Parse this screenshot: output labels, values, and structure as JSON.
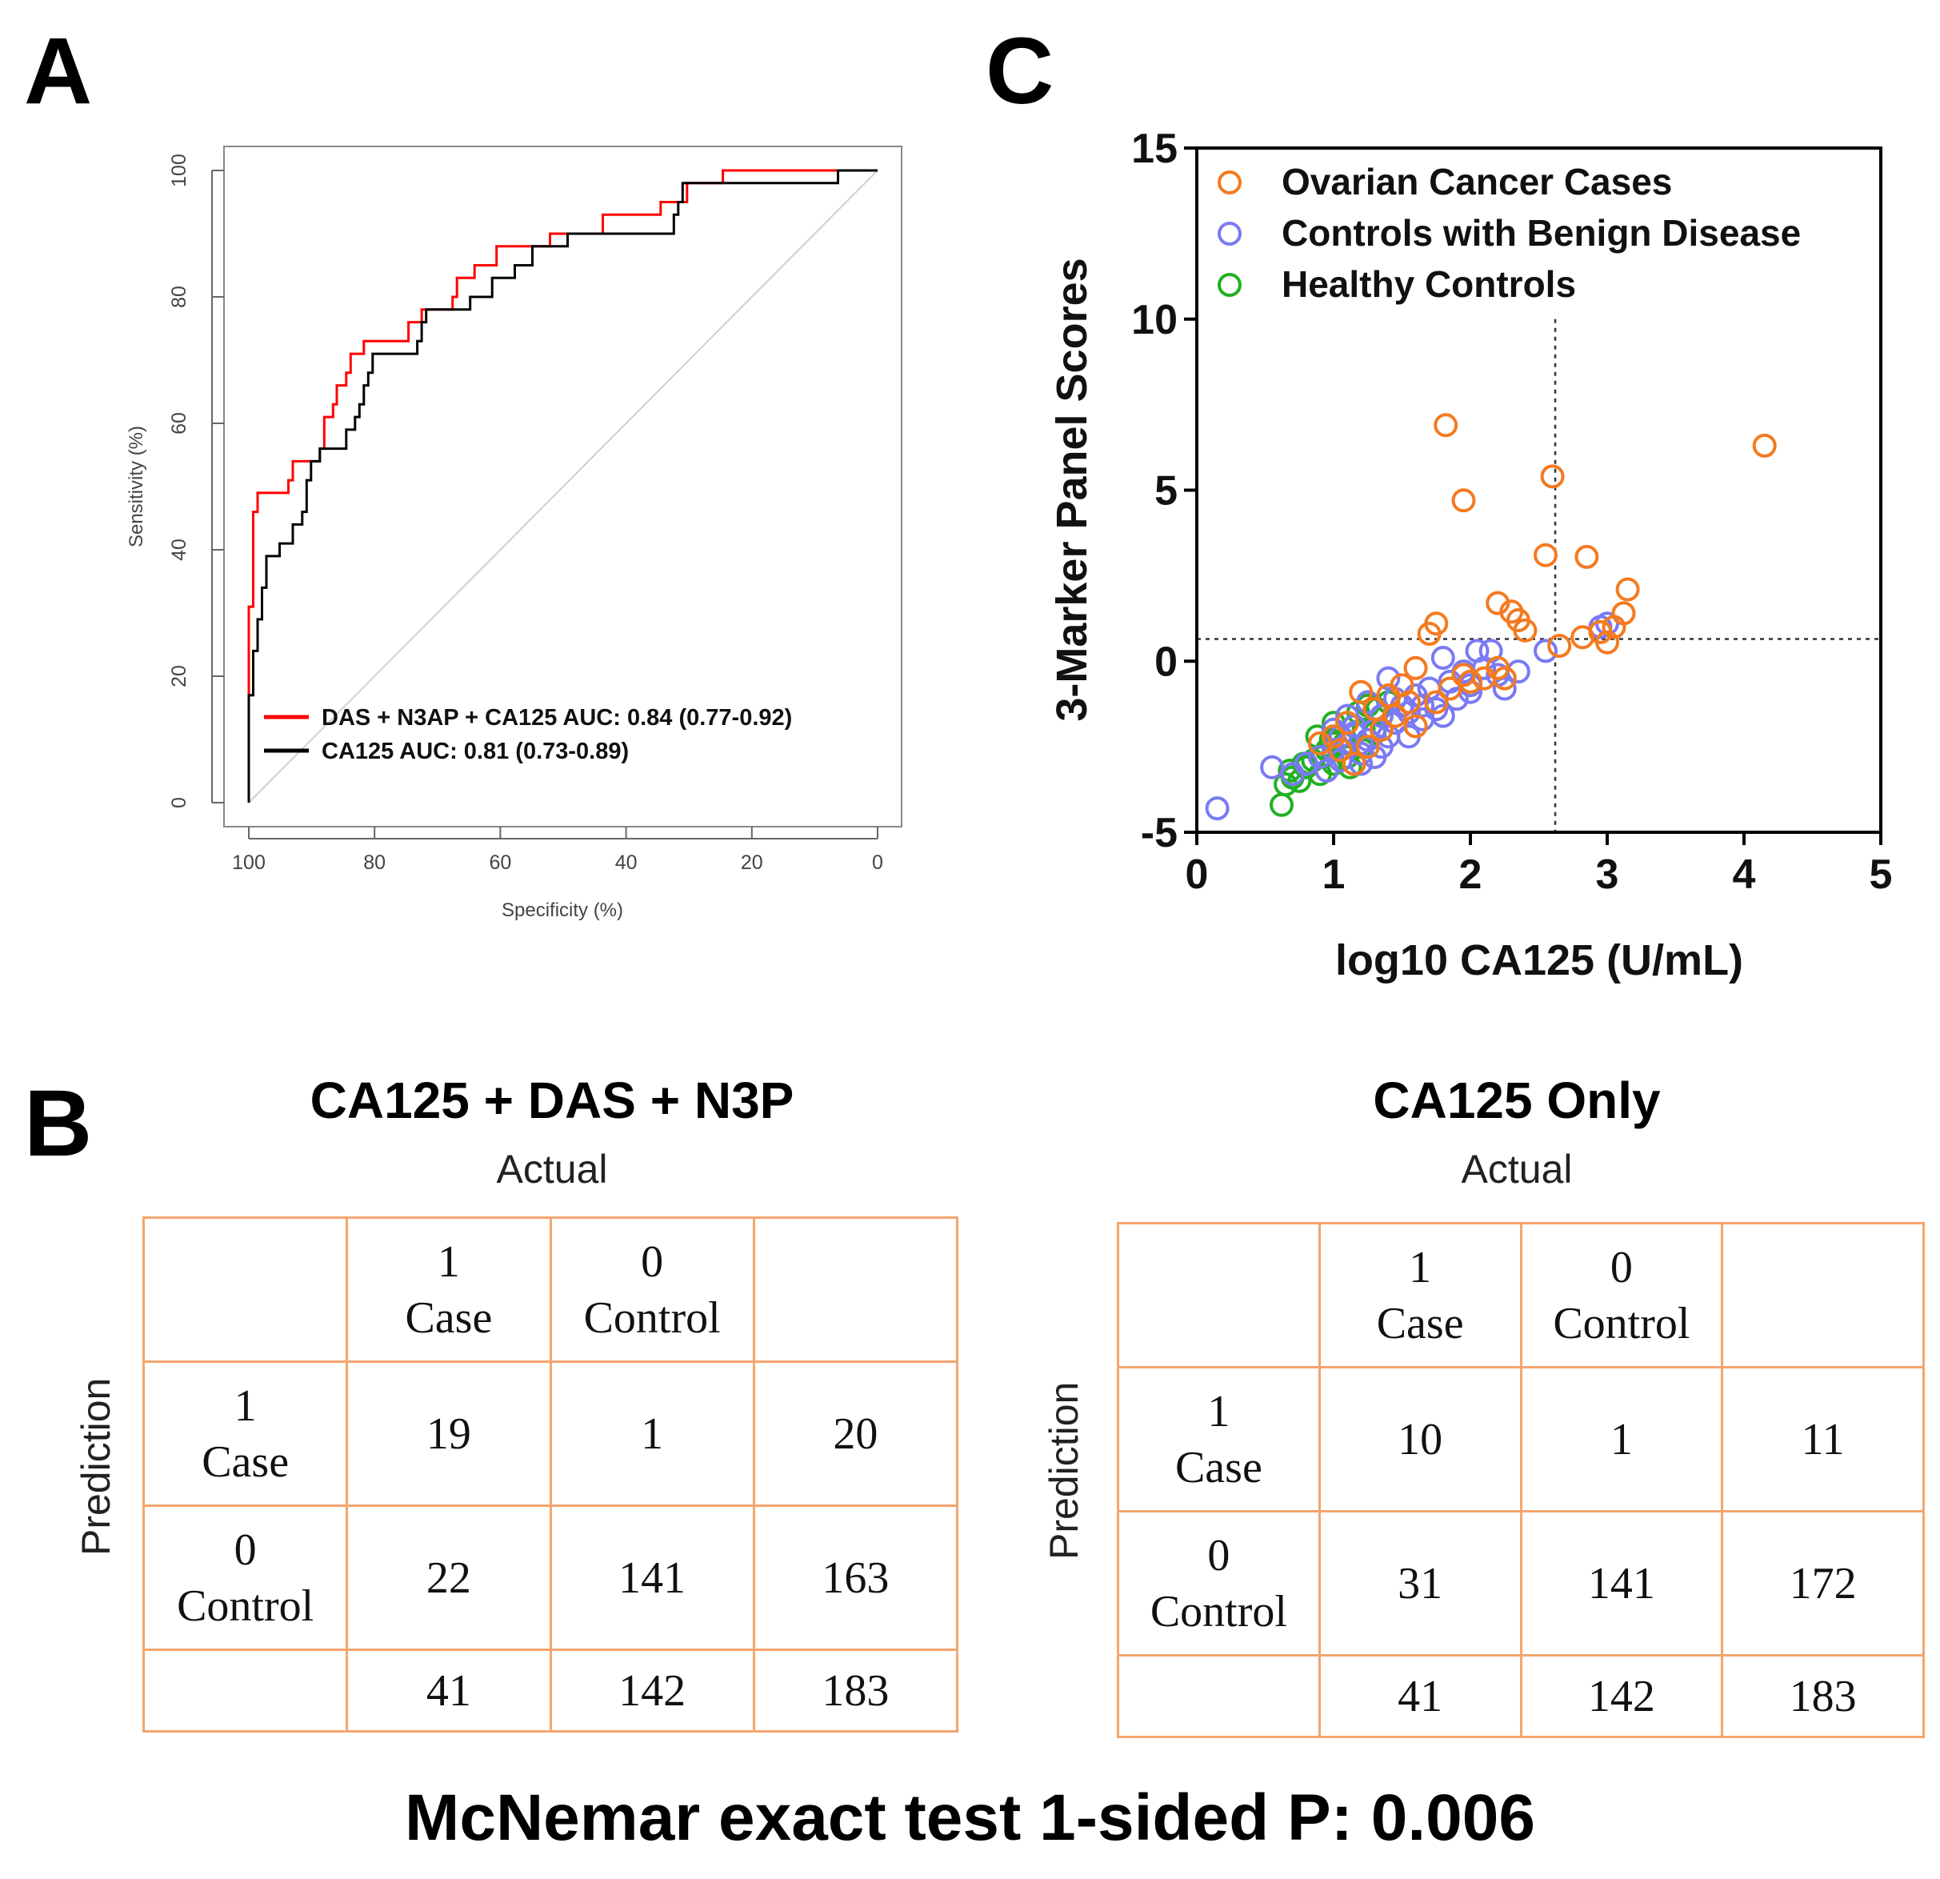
{
  "panels": {
    "a": "A",
    "b": "B",
    "c": "C"
  },
  "roc": {
    "xlabel": "Specificity (%)",
    "ylabel": "Sensitivity (%)",
    "x_ticks": [
      100,
      80,
      60,
      40,
      20,
      0
    ],
    "y_ticks": [
      0,
      20,
      40,
      60,
      80,
      100
    ],
    "legend": [
      {
        "label": "DAS +  N3AP + CA125 AUC: 0.84 (0.77-0.92)",
        "color": "#ff0000"
      },
      {
        "label": "CA125 AUC: 0.81 (0.73-0.89)",
        "color": "#000000"
      }
    ]
  },
  "chart_data": [
    {
      "type": "line",
      "title": "",
      "xlabel": "Specificity (%)",
      "ylabel": "Sensitivity (%)",
      "xlim": [
        100,
        0
      ],
      "ylim": [
        0,
        100
      ],
      "series": [
        {
          "name": "DAS +  N3AP + CA125 AUC: 0.84 (0.77-0.92)",
          "color": "#ff0000",
          "points": [
            [
              100,
              17
            ],
            [
              100,
              31
            ],
            [
              99.3,
              31
            ],
            [
              99.3,
              46
            ],
            [
              98.6,
              46
            ],
            [
              98.6,
              49
            ],
            [
              93.7,
              49
            ],
            [
              93.7,
              51
            ],
            [
              93,
              51
            ],
            [
              93,
              54
            ],
            [
              88.7,
              54
            ],
            [
              88.7,
              56
            ],
            [
              88,
              56
            ],
            [
              88,
              61
            ],
            [
              86.6,
              61
            ],
            [
              86.6,
              63
            ],
            [
              86,
              63
            ],
            [
              86,
              66
            ],
            [
              84.5,
              66
            ],
            [
              84.5,
              68
            ],
            [
              83.8,
              68
            ],
            [
              83.8,
              71
            ],
            [
              81.7,
              71
            ],
            [
              81.7,
              73
            ],
            [
              74.6,
              73
            ],
            [
              74.6,
              76
            ],
            [
              72.5,
              76
            ],
            [
              72.5,
              78
            ],
            [
              67.6,
              78
            ],
            [
              67.6,
              80
            ],
            [
              66.9,
              80
            ],
            [
              66.9,
              83
            ],
            [
              64.1,
              83
            ],
            [
              64.1,
              85
            ],
            [
              60.6,
              85
            ],
            [
              60.6,
              88
            ],
            [
              52.1,
              88
            ],
            [
              52.1,
              90
            ],
            [
              43.7,
              90
            ],
            [
              43.7,
              93
            ],
            [
              34.5,
              93
            ],
            [
              34.5,
              95
            ],
            [
              30.3,
              95
            ],
            [
              30.3,
              98
            ],
            [
              24.6,
              98
            ],
            [
              24.6,
              100
            ],
            [
              0,
              100
            ]
          ]
        },
        {
          "name": "CA125 AUC: 0.81 (0.73-0.89)",
          "color": "#000000",
          "points": [
            [
              100,
              0
            ],
            [
              100,
              17
            ],
            [
              99.3,
              17
            ],
            [
              99.3,
              24
            ],
            [
              98.6,
              24
            ],
            [
              98.6,
              29
            ],
            [
              97.9,
              29
            ],
            [
              97.9,
              34
            ],
            [
              97.2,
              34
            ],
            [
              97.2,
              39
            ],
            [
              95.1,
              39
            ],
            [
              95.1,
              41
            ],
            [
              93,
              41
            ],
            [
              93,
              44
            ],
            [
              91.5,
              44
            ],
            [
              91.5,
              46
            ],
            [
              90.8,
              46
            ],
            [
              90.8,
              51
            ],
            [
              90.1,
              51
            ],
            [
              90.1,
              54
            ],
            [
              88.7,
              54
            ],
            [
              88.7,
              56
            ],
            [
              84.5,
              56
            ],
            [
              84.5,
              59
            ],
            [
              83.1,
              59
            ],
            [
              83.1,
              61
            ],
            [
              82.4,
              61
            ],
            [
              82.4,
              63
            ],
            [
              81.7,
              63
            ],
            [
              81.7,
              66
            ],
            [
              81,
              66
            ],
            [
              81,
              68
            ],
            [
              80.3,
              68
            ],
            [
              80.3,
              71
            ],
            [
              73.2,
              71
            ],
            [
              73.2,
              73
            ],
            [
              72.5,
              73
            ],
            [
              72.5,
              76
            ],
            [
              71.8,
              76
            ],
            [
              71.8,
              78
            ],
            [
              64.8,
              78
            ],
            [
              64.8,
              80
            ],
            [
              61.3,
              80
            ],
            [
              61.3,
              83
            ],
            [
              57.7,
              83
            ],
            [
              57.7,
              85
            ],
            [
              54.9,
              85
            ],
            [
              54.9,
              88
            ],
            [
              49.3,
              88
            ],
            [
              49.3,
              90
            ],
            [
              32.4,
              90
            ],
            [
              32.4,
              93
            ],
            [
              31.7,
              93
            ],
            [
              31.7,
              95
            ],
            [
              31,
              95
            ],
            [
              31,
              98
            ],
            [
              6.3,
              98
            ],
            [
              6.3,
              100
            ],
            [
              0,
              100
            ]
          ]
        },
        {
          "name": "reference",
          "color": "#d0d0d0",
          "points": [
            [
              100,
              0
            ],
            [
              0,
              100
            ]
          ]
        }
      ]
    },
    {
      "type": "scatter",
      "title": "",
      "xlabel": "log10 CA125 (U/mL)",
      "ylabel": "3-Marker Panel Scores",
      "xlim": [
        0,
        5
      ],
      "ylim": [
        -5,
        15
      ],
      "x_ticks": [
        0,
        1,
        2,
        3,
        4,
        5
      ],
      "y_ticks": [
        -5,
        0,
        5,
        10,
        15
      ],
      "thresholds": {
        "x": 2.62,
        "y": 0.65
      },
      "legend_position": "top-left",
      "series": [
        {
          "name": "Ovarian Cancer Cases",
          "color": "#f47a20",
          "points": [
            [
              1.82,
              6.9
            ],
            [
              4.15,
              6.3
            ],
            [
              2.6,
              5.4
            ],
            [
              1.95,
              4.7
            ],
            [
              2.55,
              3.1
            ],
            [
              2.85,
              3.05
            ],
            [
              3.15,
              2.1
            ],
            [
              2.2,
              1.7
            ],
            [
              2.3,
              1.45
            ],
            [
              1.75,
              1.1
            ],
            [
              2.35,
              1.2
            ],
            [
              1.7,
              0.8
            ],
            [
              2.4,
              0.9
            ],
            [
              3.12,
              1.4
            ],
            [
              3.05,
              1.0
            ],
            [
              2.95,
              0.85
            ],
            [
              2.82,
              0.7
            ],
            [
              2.65,
              0.45
            ],
            [
              3.0,
              0.55
            ],
            [
              2.2,
              -0.2
            ],
            [
              2.1,
              -0.5
            ],
            [
              2.0,
              -0.6
            ],
            [
              1.95,
              -0.4
            ],
            [
              1.85,
              -0.8
            ],
            [
              1.6,
              -0.2
            ],
            [
              1.5,
              -0.7
            ],
            [
              1.55,
              -1.2
            ],
            [
              1.4,
              -1.0
            ],
            [
              1.3,
              -1.4
            ],
            [
              1.2,
              -0.9
            ],
            [
              1.1,
              -1.8
            ],
            [
              1.0,
              -2.2
            ],
            [
              1.45,
              -1.6
            ],
            [
              1.6,
              -1.9
            ],
            [
              1.25,
              -2.5
            ],
            [
              1.35,
              -2.0
            ],
            [
              1.05,
              -2.6
            ],
            [
              0.9,
              -2.4
            ],
            [
              1.15,
              -3.0
            ],
            [
              1.75,
              -1.2
            ],
            [
              2.25,
              -0.5
            ]
          ]
        },
        {
          "name": "Controls with Benign Disease",
          "color": "#7a7af4",
          "points": [
            [
              0.15,
              -4.3
            ],
            [
              0.55,
              -3.1
            ],
            [
              0.7,
              -3.3
            ],
            [
              0.8,
              -3.0
            ],
            [
              0.9,
              -2.8
            ],
            [
              1.0,
              -2.6
            ],
            [
              1.05,
              -2.9
            ],
            [
              1.1,
              -2.4
            ],
            [
              1.15,
              -2.1
            ],
            [
              1.2,
              -2.7
            ],
            [
              1.25,
              -2.3
            ],
            [
              1.3,
              -2.0
            ],
            [
              1.35,
              -1.6
            ],
            [
              1.4,
              -2.2
            ],
            [
              1.45,
              -1.8
            ],
            [
              1.5,
              -1.3
            ],
            [
              1.55,
              -1.5
            ],
            [
              1.6,
              -1.0
            ],
            [
              1.65,
              -1.7
            ],
            [
              1.7,
              -0.8
            ],
            [
              1.75,
              -1.4
            ],
            [
              1.8,
              0.1
            ],
            [
              1.85,
              -0.6
            ],
            [
              1.9,
              -1.1
            ],
            [
              1.95,
              -0.3
            ],
            [
              2.0,
              -0.9
            ],
            [
              2.05,
              0.3
            ],
            [
              2.1,
              -0.2
            ],
            [
              2.15,
              0.3
            ],
            [
              2.2,
              -0.4
            ],
            [
              2.25,
              -0.8
            ],
            [
              2.35,
              -0.3
            ],
            [
              2.55,
              0.3
            ],
            [
              2.95,
              1.0
            ],
            [
              3.0,
              1.1
            ],
            [
              1.1,
              -1.6
            ],
            [
              1.2,
              -3.0
            ],
            [
              1.3,
              -2.8
            ],
            [
              0.95,
              -3.2
            ],
            [
              1.35,
              -2.5
            ],
            [
              1.45,
              -1.1
            ],
            [
              1.05,
              -2.2
            ],
            [
              1.15,
              -1.9
            ],
            [
              1.25,
              -1.2
            ],
            [
              1.55,
              -2.2
            ],
            [
              1.65,
              -1.3
            ],
            [
              1.4,
              -0.5
            ],
            [
              1.0,
              -2.0
            ],
            [
              1.8,
              -1.6
            ],
            [
              2.0,
              -0.7
            ]
          ]
        },
        {
          "name": "Healthy Controls",
          "color": "#22b022",
          "points": [
            [
              0.62,
              -4.2
            ],
            [
              0.65,
              -3.6
            ],
            [
              0.7,
              -3.4
            ],
            [
              0.75,
              -3.5
            ],
            [
              0.8,
              -3.1
            ],
            [
              0.85,
              -2.9
            ],
            [
              0.9,
              -3.3
            ],
            [
              0.95,
              -2.6
            ],
            [
              1.0,
              -3.0
            ],
            [
              1.05,
              -2.2
            ],
            [
              1.1,
              -2.8
            ],
            [
              1.15,
              -1.9
            ],
            [
              1.2,
              -2.5
            ],
            [
              1.25,
              -1.3
            ],
            [
              1.3,
              -2.1
            ],
            [
              1.35,
              -1.6
            ],
            [
              1.4,
              -1.2
            ],
            [
              0.88,
              -2.2
            ],
            [
              1.0,
              -1.8
            ],
            [
              1.08,
              -2.4
            ],
            [
              1.18,
              -1.5
            ],
            [
              0.78,
              -3.0
            ],
            [
              0.92,
              -2.8
            ],
            [
              1.22,
              -2.0
            ],
            [
              1.12,
              -3.1
            ],
            [
              0.68,
              -3.2
            ],
            [
              1.32,
              -1.4
            ],
            [
              0.98,
              -2.3
            ]
          ]
        }
      ]
    }
  ],
  "tables": {
    "left": {
      "title": "CA125 + DAS + N3P",
      "actual_label": "Actual",
      "prediction_label": "Prediction",
      "header": [
        "",
        "1\nCase",
        "0\nControl",
        ""
      ],
      "rows": [
        [
          "1\nCase",
          "19",
          "1",
          "20"
        ],
        [
          "0\nControl",
          "22",
          "141",
          "163"
        ],
        [
          "",
          "41",
          "142",
          "183"
        ]
      ]
    },
    "right": {
      "title": "CA125 Only",
      "actual_label": "Actual",
      "prediction_label": "Prediction",
      "header": [
        "",
        "1\nCase",
        "0\nControl",
        ""
      ],
      "rows": [
        [
          "1\nCase",
          "10",
          "1",
          "11"
        ],
        [
          "0\nControl",
          "31",
          "141",
          "172"
        ],
        [
          "",
          "41",
          "142",
          "183"
        ]
      ]
    }
  },
  "footer": {
    "mcnemar": "McNemar  exact test 1-sided  P: 0.006"
  }
}
